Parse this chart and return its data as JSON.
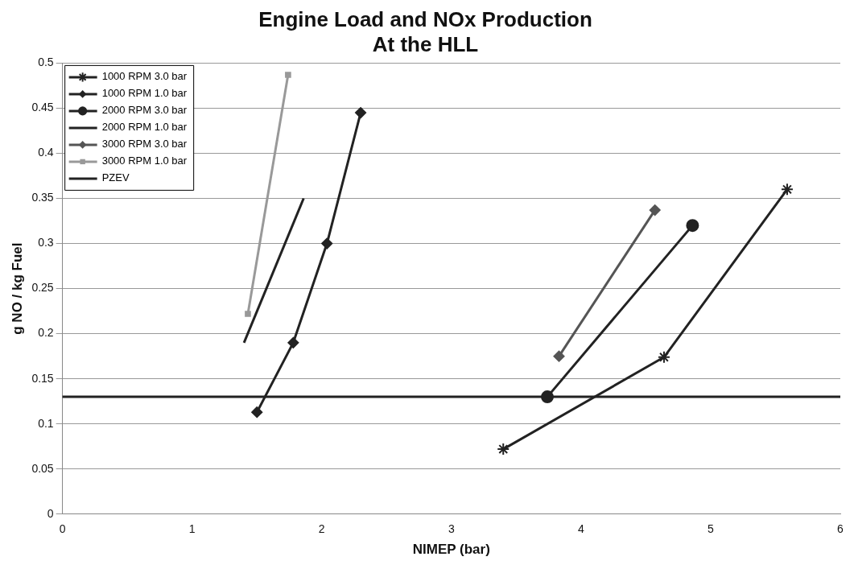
{
  "chart_data": {
    "type": "line",
    "title": [
      "Engine Load and NOx Production",
      "At the HLL"
    ],
    "xlabel": "NIMEP (bar)",
    "ylabel": "g NO / kg Fuel",
    "xlim": [
      0,
      6
    ],
    "xticks": [
      0,
      1,
      2,
      3,
      4,
      5,
      6
    ],
    "ylim": [
      0,
      0.5
    ],
    "yticks": [
      0,
      0.05,
      0.1,
      0.15,
      0.2,
      0.25,
      0.3,
      0.35,
      0.4,
      0.45,
      0.5
    ],
    "grid": "y",
    "legend": "top left",
    "series": [
      {
        "name": "1000 RPM 3.0 bar",
        "color": "#222222",
        "marker": "cross",
        "x": [
          3.4,
          4.64,
          5.59
        ],
        "values": [
          0.072,
          0.174,
          0.36
        ]
      },
      {
        "name": "1000 RPM 1.0 bar",
        "color": "#222222",
        "marker": "diamond",
        "x": [
          1.5,
          1.78,
          2.04,
          2.3
        ],
        "values": [
          0.113,
          0.19,
          0.3,
          0.445
        ]
      },
      {
        "name": "2000 RPM 3.0 bar",
        "color": "#222222",
        "marker": "circle",
        "x": [
          3.74,
          4.86
        ],
        "values": [
          0.13,
          0.32
        ]
      },
      {
        "name": "2000 RPM 1.0 bar",
        "color": "#222222",
        "marker": "none",
        "x": [
          1.4,
          1.86
        ],
        "values": [
          0.19,
          0.35
        ]
      },
      {
        "name": "3000 RPM 3.0 bar",
        "color": "#555555",
        "marker": "diamond",
        "x": [
          3.83,
          4.57
        ],
        "values": [
          0.175,
          0.337
        ]
      },
      {
        "name": "3000 RPM 1.0 bar",
        "color": "#999999",
        "marker": "square",
        "x": [
          1.43,
          1.74
        ],
        "values": [
          0.222,
          0.487
        ]
      }
    ],
    "ref_lines": [
      {
        "axis": "y",
        "value": 0.13,
        "label": "PZEV",
        "color": "#222222"
      }
    ]
  }
}
